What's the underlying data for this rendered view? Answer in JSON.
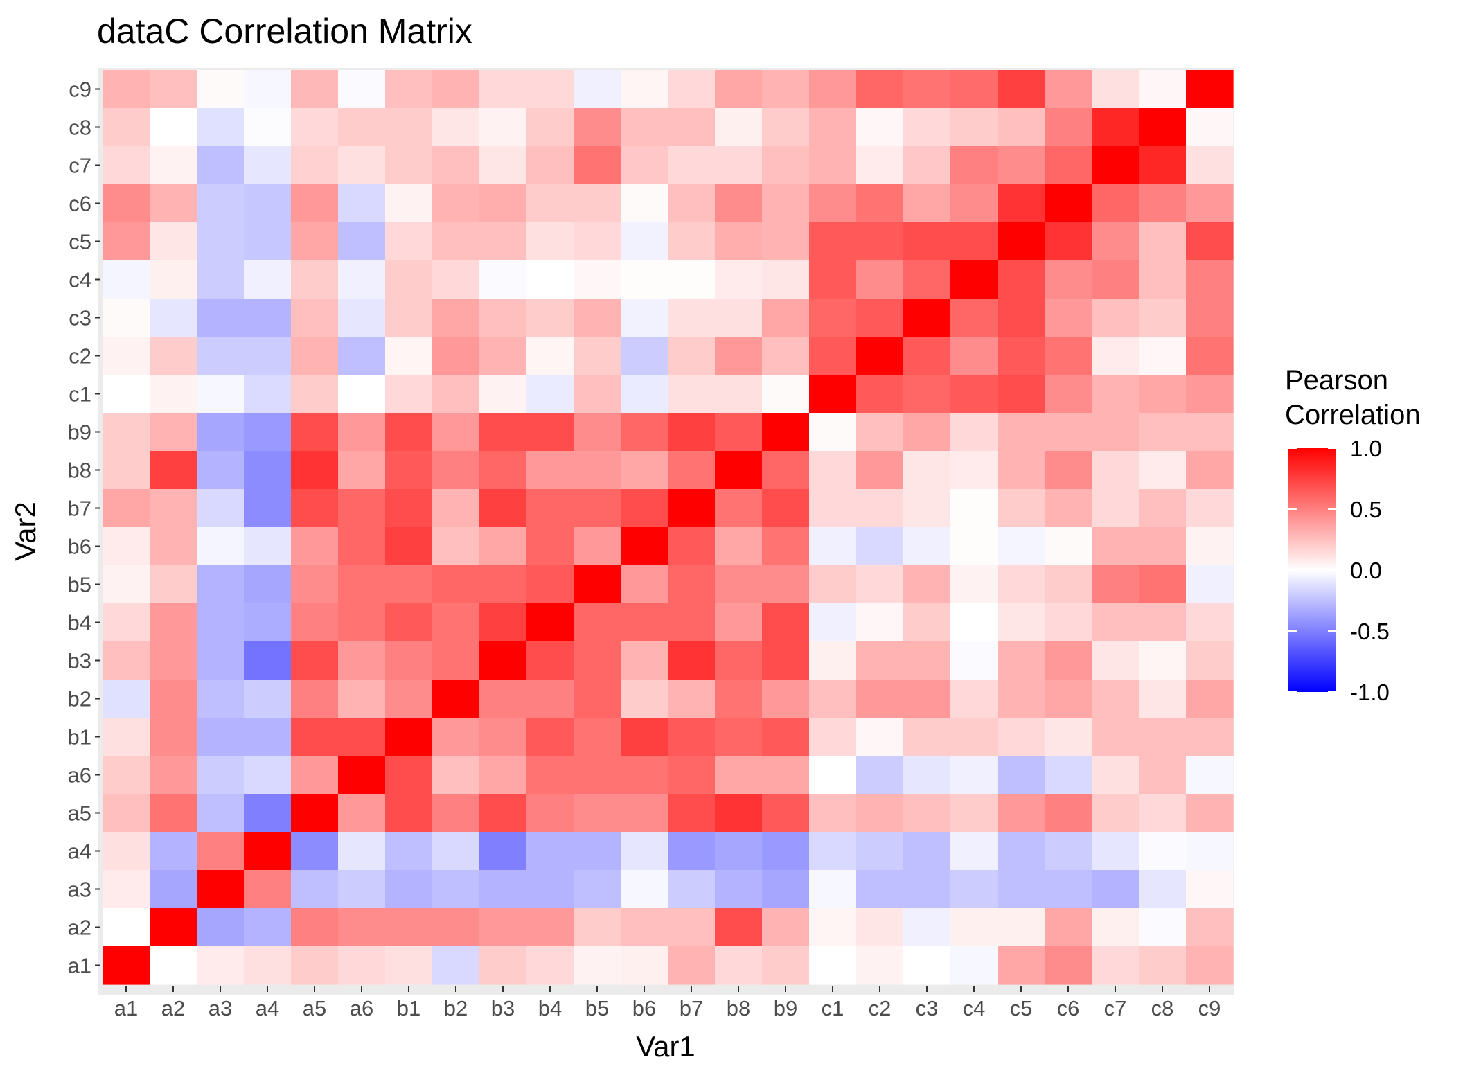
{
  "chart_data": {
    "type": "heatmap",
    "title": "dataC Correlation Matrix",
    "xlabel": "Var1",
    "ylabel": "Var2",
    "categories": [
      "a1",
      "a2",
      "a3",
      "a4",
      "a5",
      "a6",
      "b1",
      "b2",
      "b3",
      "b4",
      "b5",
      "b6",
      "b7",
      "b8",
      "b9",
      "c1",
      "c2",
      "c3",
      "c4",
      "c5",
      "c6",
      "c7",
      "c8",
      "c9"
    ],
    "grid": true,
    "legend": {
      "title_line1": "Pearson",
      "title_line2": "Correlation",
      "position": "right",
      "scale_min": -1.0,
      "scale_max": 1.0,
      "ticks": [
        "1.0",
        "0.5",
        "0.0",
        "-0.5",
        "-1.0"
      ],
      "tick_values": [
        1.0,
        0.5,
        0.0,
        -0.5,
        -1.0
      ]
    },
    "colors": {
      "low": "#0000ff",
      "mid": "#ffffff",
      "high": "#ff0000",
      "panel_bg": "#ebebeb"
    },
    "rows_top_to_bottom": [
      "c9",
      "c8",
      "c7",
      "c6",
      "c5",
      "c4",
      "c3",
      "c2",
      "c1",
      "b9",
      "b8",
      "b7",
      "b6",
      "b5",
      "b4",
      "b3",
      "b2",
      "b1",
      "a6",
      "a5",
      "a4",
      "a3",
      "a2",
      "a1"
    ],
    "values": [
      [
        0.3,
        0.25,
        0.02,
        -0.03,
        0.28,
        -0.02,
        0.25,
        0.3,
        0.15,
        0.15,
        -0.06,
        0.04,
        0.15,
        0.35,
        0.3,
        0.4,
        0.6,
        0.55,
        0.58,
        0.75,
        0.4,
        0.12,
        0.03,
        1.0
      ],
      [
        0.2,
        0.0,
        -0.12,
        -0.01,
        0.15,
        0.2,
        0.2,
        0.1,
        0.05,
        0.2,
        0.45,
        0.25,
        0.25,
        0.06,
        0.2,
        0.3,
        0.03,
        0.15,
        0.2,
        0.25,
        0.5,
        0.85,
        1.0,
        0.03
      ],
      [
        0.15,
        0.05,
        -0.25,
        -0.1,
        0.18,
        0.12,
        0.2,
        0.25,
        0.1,
        0.25,
        0.55,
        0.22,
        0.15,
        0.15,
        0.25,
        0.3,
        0.08,
        0.22,
        0.5,
        0.45,
        0.6,
        1.0,
        0.85,
        0.12
      ],
      [
        0.45,
        0.3,
        -0.2,
        -0.22,
        0.4,
        -0.15,
        0.05,
        0.3,
        0.32,
        0.2,
        0.2,
        0.02,
        0.25,
        0.45,
        0.3,
        0.45,
        0.55,
        0.35,
        0.45,
        0.8,
        1.0,
        0.6,
        0.5,
        0.4
      ],
      [
        0.4,
        0.1,
        -0.2,
        -0.22,
        0.35,
        -0.25,
        0.15,
        0.25,
        0.25,
        0.12,
        0.15,
        -0.05,
        0.2,
        0.32,
        0.3,
        0.65,
        0.65,
        0.7,
        0.7,
        1.0,
        0.8,
        0.45,
        0.25,
        0.7
      ],
      [
        -0.04,
        0.06,
        -0.2,
        -0.06,
        0.2,
        -0.06,
        0.2,
        0.15,
        -0.02,
        0.0,
        0.03,
        0.01,
        0.01,
        0.08,
        0.1,
        0.65,
        0.45,
        0.6,
        1.0,
        0.7,
        0.45,
        0.5,
        0.25,
        0.5
      ],
      [
        0.02,
        -0.1,
        -0.3,
        -0.3,
        0.25,
        -0.1,
        0.2,
        0.35,
        0.25,
        0.2,
        0.3,
        -0.05,
        0.12,
        0.12,
        0.35,
        0.6,
        0.65,
        1.0,
        0.6,
        0.7,
        0.4,
        0.25,
        0.2,
        0.5
      ],
      [
        0.05,
        0.2,
        -0.2,
        -0.2,
        0.3,
        -0.25,
        0.04,
        0.4,
        0.3,
        0.04,
        0.2,
        -0.2,
        0.2,
        0.4,
        0.25,
        0.65,
        1.0,
        0.65,
        0.45,
        0.65,
        0.55,
        0.08,
        0.03,
        0.55
      ],
      [
        0.0,
        0.05,
        -0.03,
        -0.14,
        0.2,
        0.0,
        0.15,
        0.25,
        0.05,
        -0.08,
        0.25,
        -0.08,
        0.12,
        0.12,
        0.02,
        1.0,
        0.65,
        0.6,
        0.65,
        0.7,
        0.45,
        0.3,
        0.35,
        0.4
      ],
      [
        0.2,
        0.3,
        -0.35,
        -0.4,
        0.7,
        0.4,
        0.7,
        0.4,
        0.7,
        0.7,
        0.45,
        0.6,
        0.75,
        0.65,
        1.0,
        0.02,
        0.25,
        0.35,
        0.15,
        0.3,
        0.3,
        0.3,
        0.25,
        0.25
      ],
      [
        0.2,
        0.75,
        -0.3,
        -0.45,
        0.8,
        0.35,
        0.65,
        0.5,
        0.6,
        0.4,
        0.4,
        0.35,
        0.55,
        1.0,
        0.6,
        0.15,
        0.4,
        0.1,
        0.08,
        0.3,
        0.45,
        0.15,
        0.08,
        0.35
      ],
      [
        0.35,
        0.3,
        -0.15,
        -0.45,
        0.7,
        0.6,
        0.7,
        0.3,
        0.75,
        0.6,
        0.6,
        0.7,
        1.0,
        0.55,
        0.7,
        0.15,
        0.15,
        0.1,
        0.01,
        0.2,
        0.3,
        0.15,
        0.25,
        0.15
      ],
      [
        0.08,
        0.3,
        -0.04,
        -0.1,
        0.4,
        0.6,
        0.75,
        0.25,
        0.35,
        0.6,
        0.4,
        1.0,
        0.65,
        0.35,
        0.55,
        -0.06,
        -0.15,
        -0.06,
        0.01,
        -0.04,
        0.02,
        0.3,
        0.3,
        0.05
      ],
      [
        0.05,
        0.2,
        -0.3,
        -0.35,
        0.45,
        0.55,
        0.55,
        0.6,
        0.6,
        0.65,
        1.0,
        0.4,
        0.6,
        0.45,
        0.45,
        0.2,
        0.15,
        0.3,
        0.05,
        0.15,
        0.2,
        0.5,
        0.55,
        -0.06
      ],
      [
        0.15,
        0.4,
        -0.3,
        -0.32,
        0.5,
        0.55,
        0.65,
        0.55,
        0.75,
        1.0,
        0.6,
        0.6,
        0.6,
        0.4,
        0.7,
        -0.06,
        0.03,
        0.2,
        0.0,
        0.1,
        0.15,
        0.25,
        0.25,
        0.15
      ],
      [
        0.25,
        0.4,
        -0.3,
        -0.55,
        0.7,
        0.4,
        0.5,
        0.55,
        1.0,
        0.7,
        0.6,
        0.3,
        0.8,
        0.6,
        0.7,
        0.06,
        0.3,
        0.3,
        -0.02,
        0.3,
        0.4,
        0.1,
        0.04,
        0.2
      ],
      [
        -0.12,
        0.45,
        -0.25,
        -0.2,
        0.5,
        0.3,
        0.45,
        1.0,
        0.5,
        0.5,
        0.6,
        0.2,
        0.3,
        0.55,
        0.4,
        0.25,
        0.4,
        0.4,
        0.15,
        0.3,
        0.35,
        0.25,
        0.1,
        0.35
      ],
      [
        0.12,
        0.45,
        -0.3,
        -0.3,
        0.7,
        0.7,
        1.0,
        0.4,
        0.45,
        0.65,
        0.55,
        0.75,
        0.65,
        0.6,
        0.65,
        0.15,
        0.03,
        0.2,
        0.2,
        0.15,
        0.1,
        0.25,
        0.25,
        0.25
      ],
      [
        0.2,
        0.4,
        -0.2,
        -0.15,
        0.4,
        1.0,
        0.7,
        0.25,
        0.35,
        0.55,
        0.55,
        0.55,
        0.6,
        0.35,
        0.35,
        0.0,
        -0.2,
        -0.1,
        -0.06,
        -0.25,
        -0.15,
        0.12,
        0.25,
        -0.03
      ],
      [
        0.25,
        0.55,
        -0.25,
        -0.5,
        1.0,
        0.4,
        0.7,
        0.5,
        0.7,
        0.5,
        0.45,
        0.45,
        0.7,
        0.8,
        0.65,
        0.25,
        0.3,
        0.25,
        0.2,
        0.4,
        0.5,
        0.2,
        0.15,
        0.3
      ],
      [
        0.12,
        -0.3,
        0.5,
        1.0,
        -0.45,
        -0.1,
        -0.25,
        -0.15,
        -0.5,
        -0.3,
        -0.3,
        -0.1,
        -0.4,
        -0.35,
        -0.4,
        -0.15,
        -0.2,
        -0.25,
        -0.06,
        -0.25,
        -0.2,
        -0.1,
        -0.02,
        -0.03
      ],
      [
        0.08,
        -0.35,
        1.0,
        0.5,
        -0.25,
        -0.2,
        -0.3,
        -0.25,
        -0.3,
        -0.3,
        -0.25,
        -0.03,
        -0.2,
        -0.3,
        -0.35,
        -0.03,
        -0.25,
        -0.25,
        -0.2,
        -0.25,
        -0.25,
        -0.3,
        -0.1,
        0.03
      ],
      [
        0.0,
        1.0,
        -0.35,
        -0.3,
        0.5,
        0.45,
        0.45,
        0.45,
        0.4,
        0.4,
        0.2,
        0.25,
        0.25,
        0.7,
        0.3,
        0.04,
        0.1,
        -0.06,
        0.06,
        0.06,
        0.35,
        0.06,
        -0.02,
        0.25
      ],
      [
        1.0,
        0.0,
        0.08,
        0.12,
        0.2,
        0.15,
        0.12,
        -0.15,
        0.2,
        0.15,
        0.05,
        0.06,
        0.3,
        0.15,
        0.2,
        0.0,
        0.05,
        0.0,
        -0.03,
        0.35,
        0.45,
        0.15,
        0.2,
        0.3
      ]
    ]
  }
}
